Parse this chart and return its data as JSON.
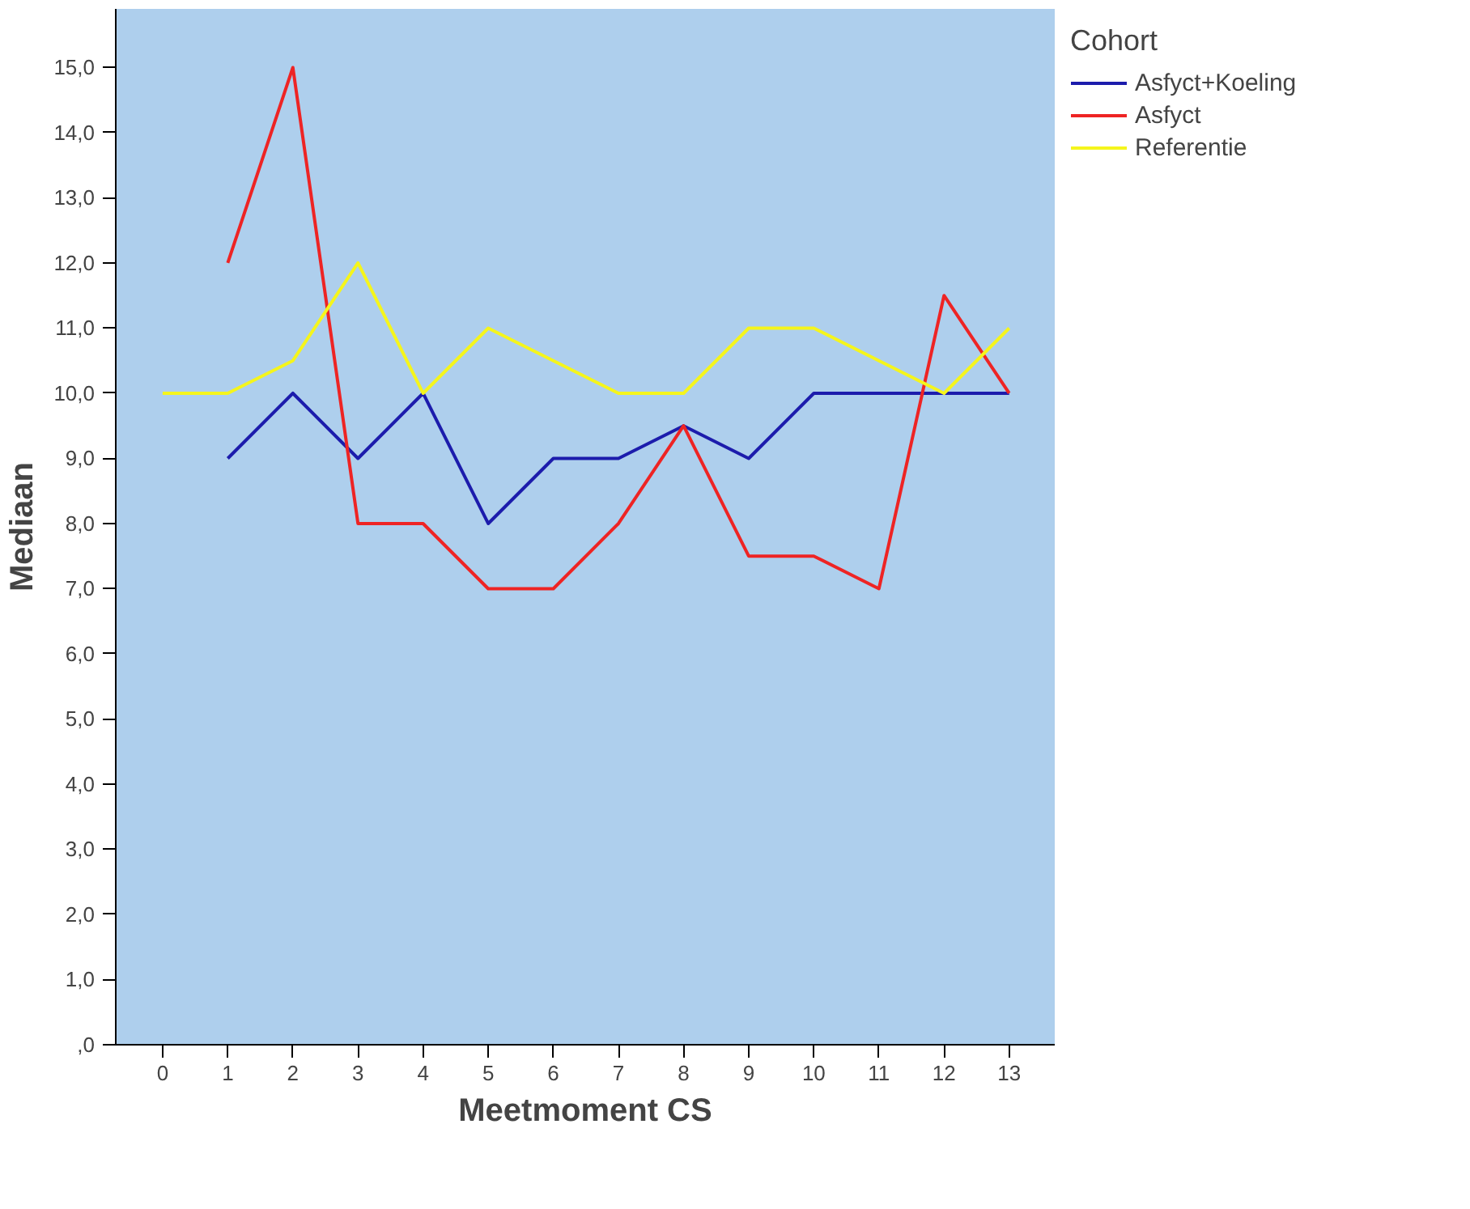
{
  "chart_data": {
    "type": "line",
    "xlabel": "Meetmoment CS",
    "ylabel": "Mediaan",
    "legend_title": "Cohort",
    "legend": "top right",
    "grid": false,
    "marker": "none",
    "line_style": "solid",
    "xlim": [
      -0.72,
      13.7
    ],
    "ylim": [
      0,
      15.9
    ],
    "xticks": [
      0,
      1,
      2,
      3,
      4,
      5,
      6,
      7,
      8,
      9,
      10,
      11,
      12,
      13
    ],
    "yticks": [
      {
        "value": 0,
        "label": ",0"
      },
      {
        "value": 1,
        "label": "1,0"
      },
      {
        "value": 2,
        "label": "2,0"
      },
      {
        "value": 3,
        "label": "3,0"
      },
      {
        "value": 4,
        "label": "4,0"
      },
      {
        "value": 5,
        "label": "5,0"
      },
      {
        "value": 6,
        "label": "6,0"
      },
      {
        "value": 7,
        "label": "7,0"
      },
      {
        "value": 8,
        "label": "8,0"
      },
      {
        "value": 9,
        "label": "9,0"
      },
      {
        "value": 10,
        "label": "10,0"
      },
      {
        "value": 11,
        "label": "11,0"
      },
      {
        "value": 12,
        "label": "12,0"
      },
      {
        "value": 13,
        "label": "13,0"
      },
      {
        "value": 14,
        "label": "14,0"
      },
      {
        "value": 15,
        "label": "15,0"
      }
    ],
    "series": [
      {
        "name": "Asfyct+Koeling",
        "color": "#1c1cac",
        "x": [
          1,
          2,
          3,
          4,
          5,
          6,
          7,
          8,
          9,
          10,
          11,
          12,
          13
        ],
        "values": [
          9,
          10,
          9,
          10,
          8,
          9,
          9,
          9.5,
          9,
          10,
          10,
          10,
          10
        ]
      },
      {
        "name": "Asfyct",
        "color": "#ee2424",
        "x": [
          1,
          2,
          3,
          4,
          5,
          6,
          7,
          8,
          9,
          10,
          11,
          12,
          13
        ],
        "values": [
          12,
          15,
          8,
          8,
          7,
          7,
          8,
          9.5,
          7.5,
          7.5,
          7,
          11.5,
          10
        ]
      },
      {
        "name": "Referentie",
        "color": "#f5f51c",
        "x": [
          0,
          1,
          2,
          3,
          4,
          5,
          6,
          7,
          8,
          9,
          10,
          11,
          12,
          13
        ],
        "values": [
          10,
          10,
          10.5,
          12,
          10,
          11,
          10.5,
          10,
          10,
          11,
          11,
          10.5,
          10,
          11
        ]
      }
    ]
  }
}
